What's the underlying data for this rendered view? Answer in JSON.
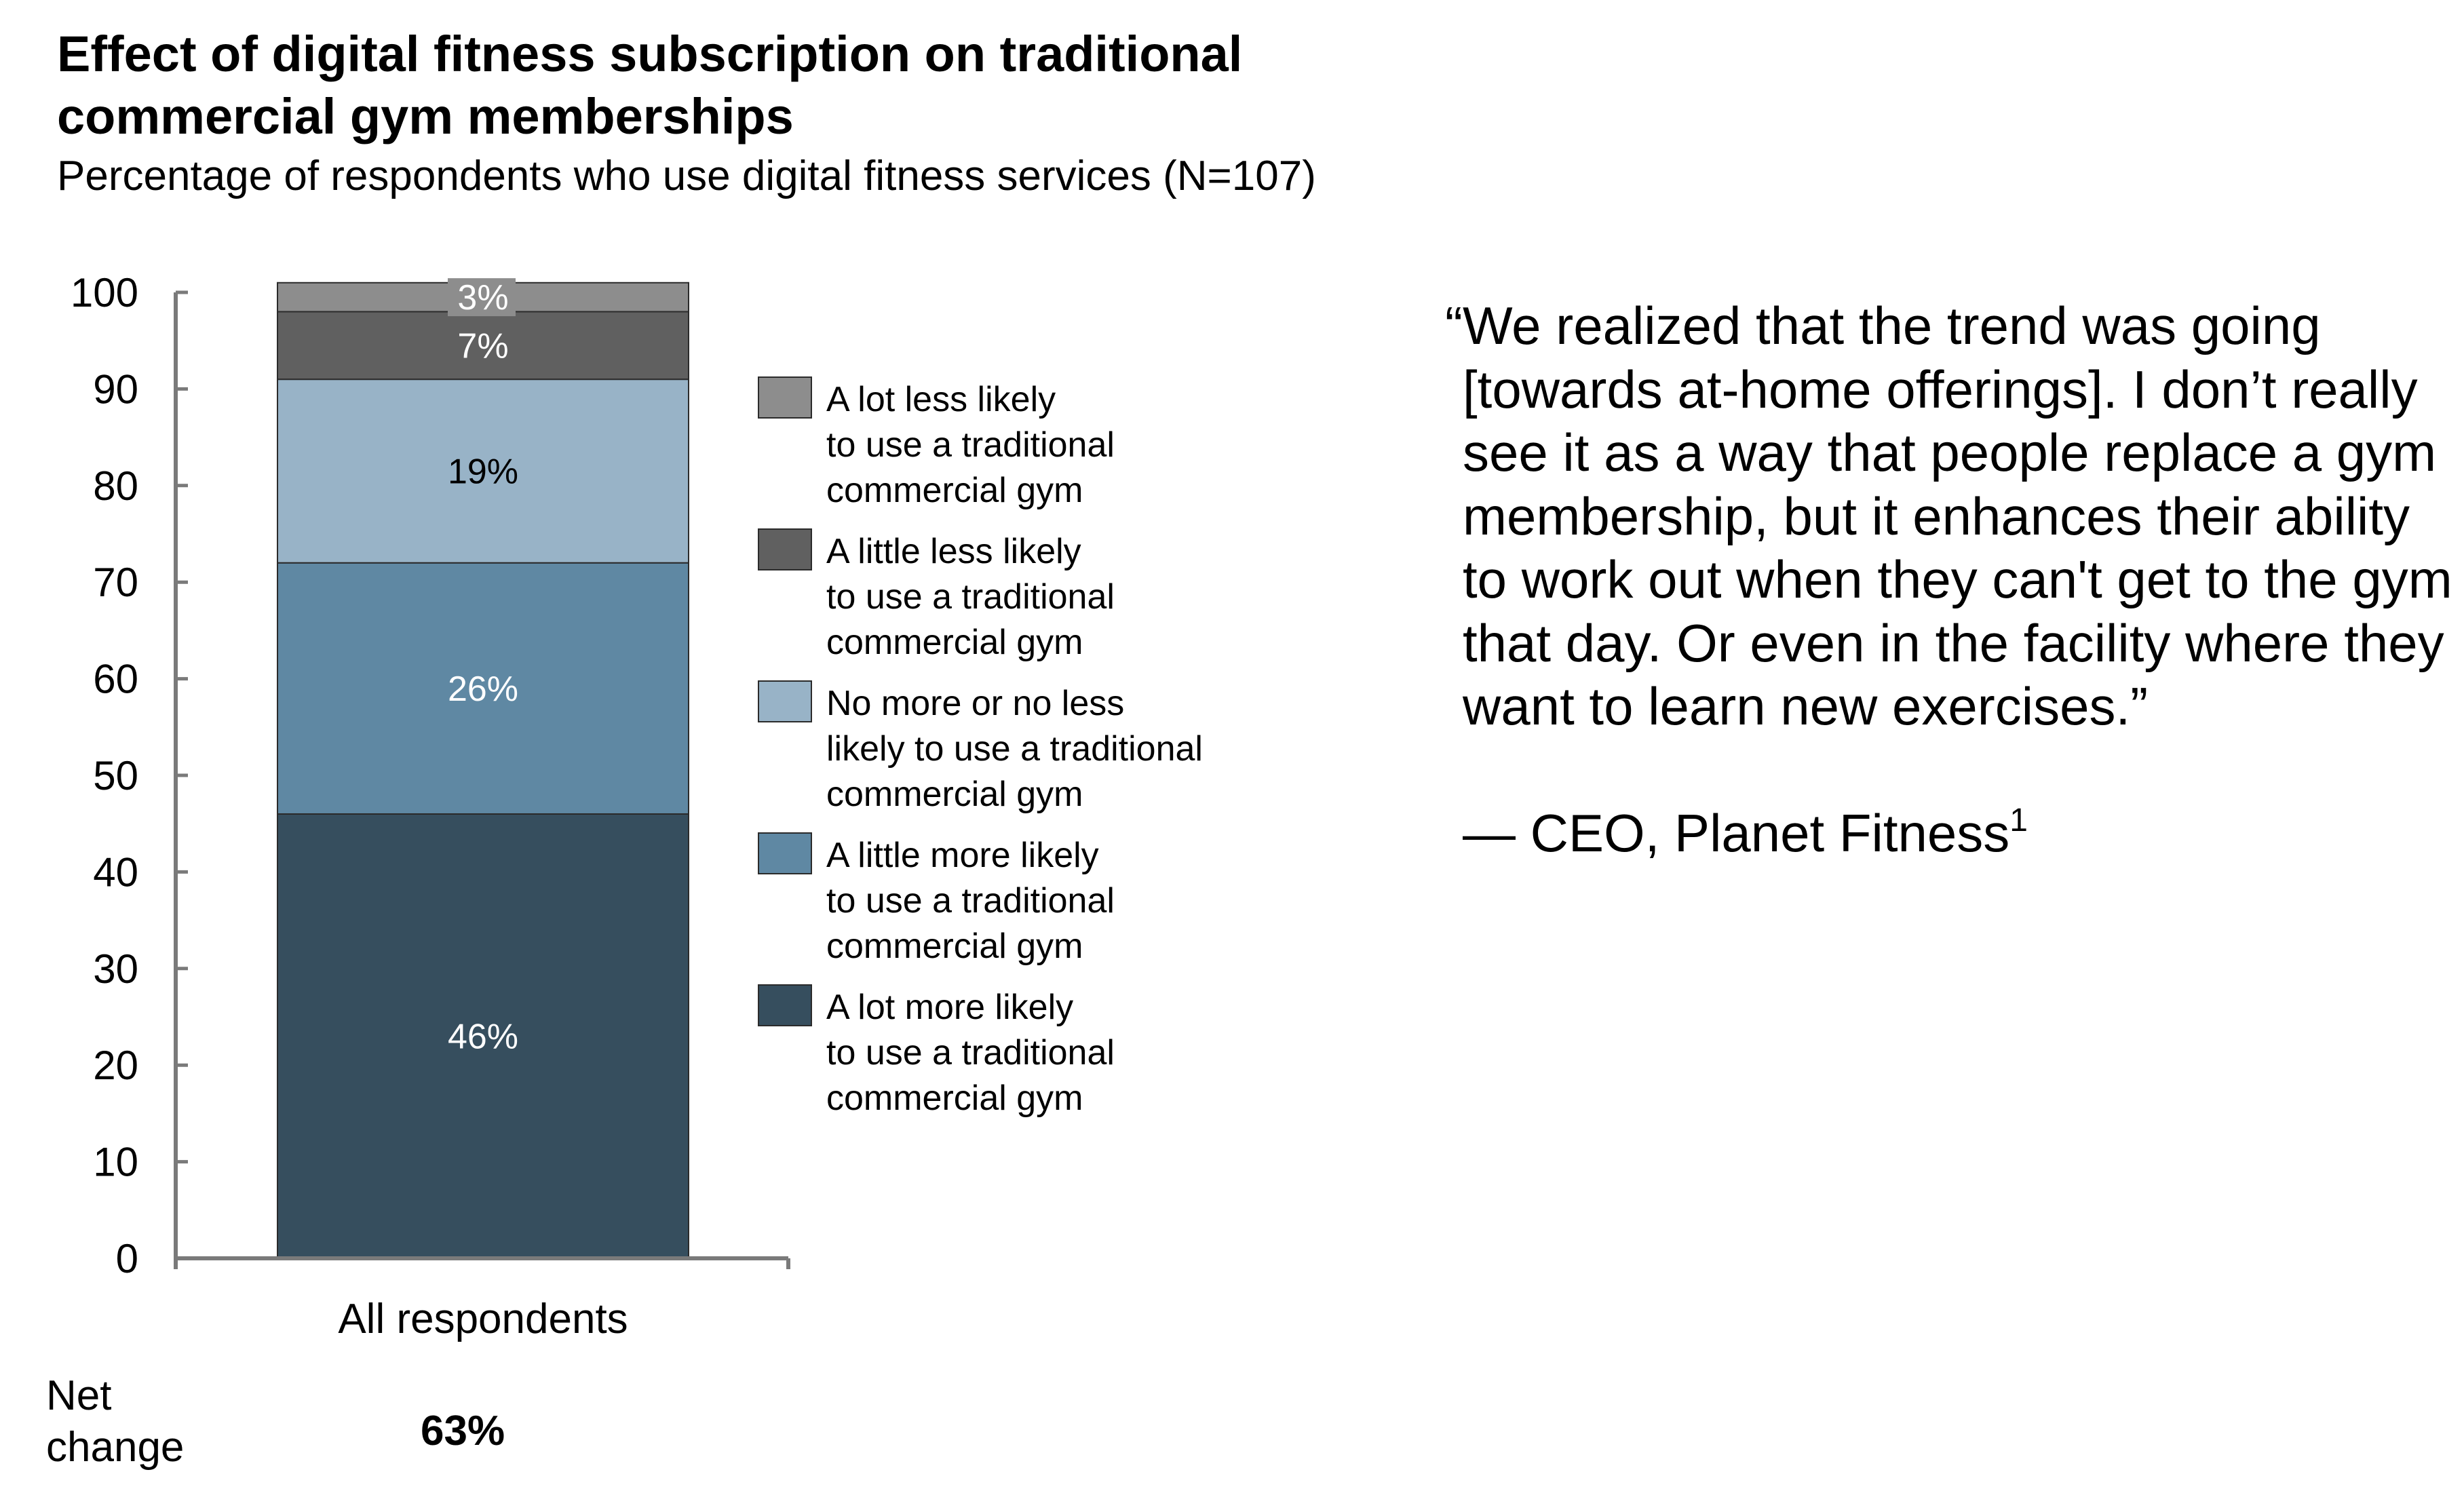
{
  "title_lines": [
    "Effect of digital fitness subscription on traditional",
    "commercial gym memberships"
  ],
  "subtitle": "Percentage of respondents who use digital fitness services (N=107)",
  "chart_data": {
    "type": "bar",
    "stacked": true,
    "categories": [
      "All respondents"
    ],
    "ylim": [
      0,
      100
    ],
    "yticks": [
      0,
      10,
      20,
      30,
      40,
      50,
      60,
      70,
      80,
      90,
      100
    ],
    "series": [
      {
        "name": "A lot more likely to use a traditional commercial gym",
        "legend_lines": [
          "A lot more likely",
          "to use a traditional",
          "commercial gym"
        ],
        "values": [
          46
        ],
        "label": "46%",
        "color": "#364e5e",
        "label_color": "#ffffff"
      },
      {
        "name": "A little more likely to use a traditional commercial gym",
        "legend_lines": [
          "A little more likely",
          "to use a traditional",
          "commercial gym"
        ],
        "values": [
          26
        ],
        "label": "26%",
        "color": "#5f88a3",
        "label_color": "#ffffff"
      },
      {
        "name": "No more or no less likely to use a traditional commercial gym",
        "legend_lines": [
          "No more or no less",
          "likely to use a traditional",
          "commercial gym"
        ],
        "values": [
          19
        ],
        "label": "19%",
        "color": "#98b3c7",
        "label_color": "#000000"
      },
      {
        "name": "A little less likely to use a traditional commercial gym",
        "legend_lines": [
          "A little less likely",
          "to use a traditional",
          "commercial gym"
        ],
        "values": [
          7
        ],
        "label": "7%",
        "color": "#606060",
        "label_color": "#ffffff"
      },
      {
        "name": "A lot less likely to use a traditional commercial gym",
        "legend_lines": [
          "A lot less likely",
          "to use a traditional",
          "commercial gym"
        ],
        "values": [
          3
        ],
        "label": "3%",
        "color": "#8d8d8d",
        "label_color": "#ffffff"
      }
    ],
    "legend_order": [
      4,
      3,
      2,
      1,
      0
    ],
    "legend_position": "right",
    "grid": false
  },
  "net_change": {
    "label_lines": [
      "Net",
      "change"
    ],
    "value": "63%"
  },
  "quote": {
    "lines": [
      "“We realized that the trend was going",
      "[towards at-home offerings]. I don’t really",
      "see it as a way that people replace a gym",
      "membership, but it enhances their ability",
      "to work out when they can't get to the gym",
      "that day. Or even in the facility where they",
      "want to learn new exercises.”"
    ],
    "attribution": "— CEO, Planet Fitness",
    "footnote_marker": "1"
  }
}
